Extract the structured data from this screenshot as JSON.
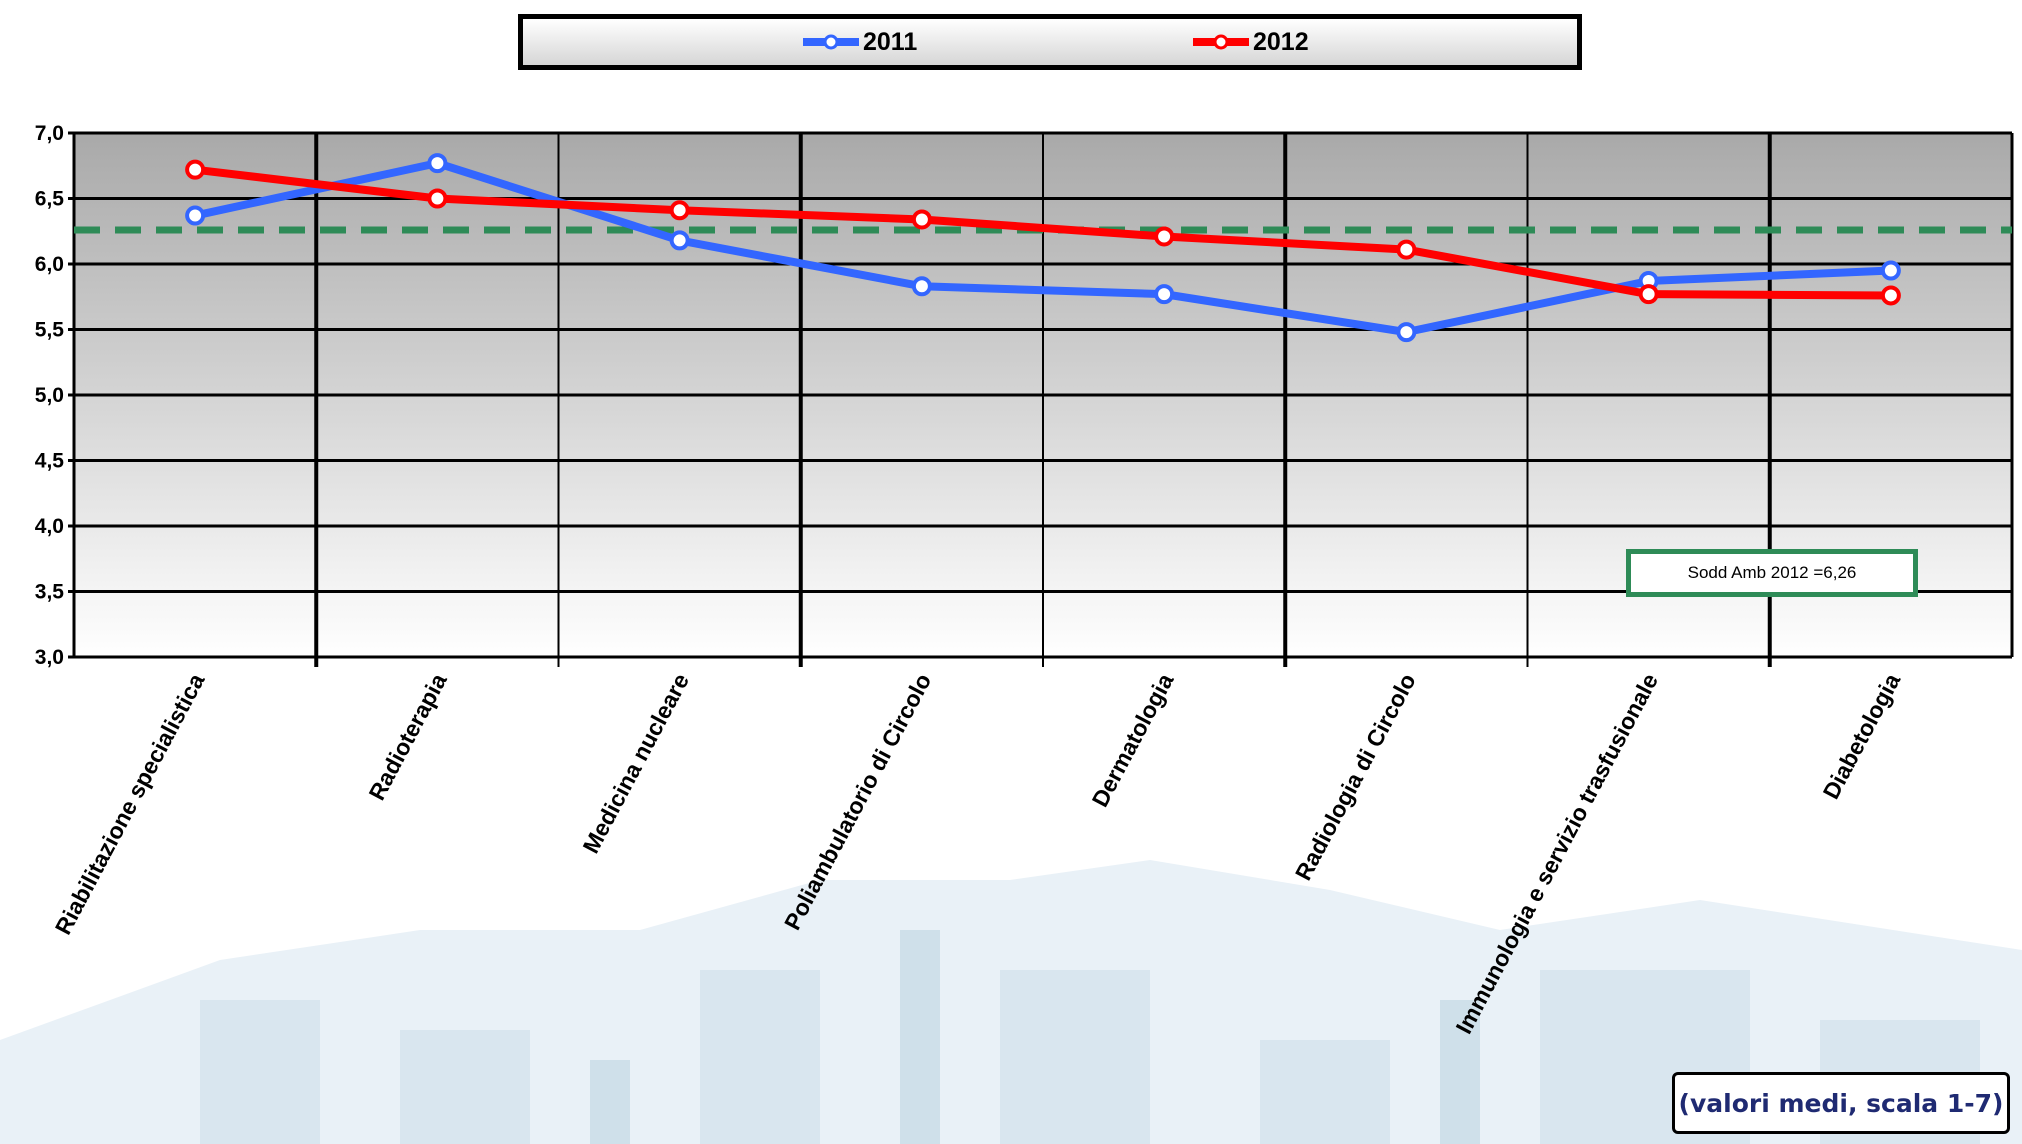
{
  "chart_data": {
    "type": "line",
    "categories": [
      "Riabilitazione specialistica",
      "Radioterapia",
      "Medicina nucleare",
      "Poliambulatorio di Circolo",
      "Dermatologia",
      "Radiologia di Circolo",
      "Immunologia e servizio trasfusionale",
      "Diabetologia"
    ],
    "series": [
      {
        "name": "2011",
        "color": "#3366ff",
        "values": [
          6.37,
          6.77,
          6.18,
          5.83,
          5.77,
          5.48,
          5.87,
          5.95
        ]
      },
      {
        "name": "2012",
        "color": "#ff0000",
        "values": [
          6.72,
          6.5,
          6.41,
          6.34,
          6.21,
          6.11,
          5.77,
          5.76
        ]
      }
    ],
    "ylim": [
      3.0,
      7.0
    ],
    "yticks": [
      "3,0",
      "3,5",
      "4,0",
      "4,5",
      "5,0",
      "5,5",
      "6,0",
      "6,5",
      "7,0"
    ],
    "reference_line": {
      "value": 6.26,
      "label": "Sodd Amb 2012 =6,26",
      "color": "#2e8b57"
    },
    "note": "(valori medi, scala 1-7)",
    "legend": "top",
    "grid": true
  }
}
